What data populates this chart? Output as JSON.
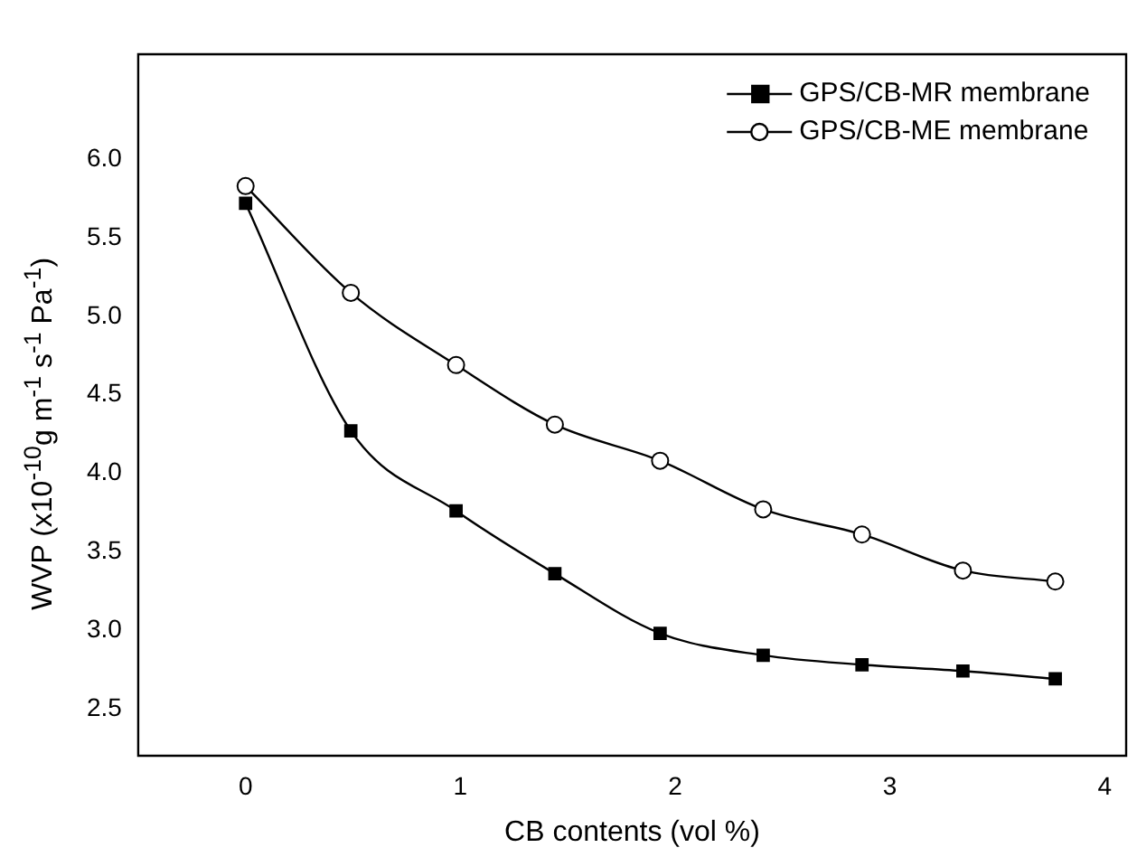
{
  "chart_data": {
    "type": "line",
    "xlabel": "CB contents (vol %)",
    "ylabel": "WVP (x10$^{-10}$g m$^{-1}$ s$^{-1}$ Pa$^{-1}$)",
    "xlim": [
      -0.5,
      4.1
    ],
    "xticks": [
      0,
      1,
      2,
      3,
      4
    ],
    "ylim": [
      2.2,
      6.67
    ],
    "yticks": [
      {
        "value": 2.5,
        "label": "2.5"
      },
      {
        "value": 3,
        "label": "3.0"
      },
      {
        "value": 3.5,
        "label": "3.5"
      },
      {
        "value": 4,
        "label": "4.0"
      },
      {
        "value": 4.5,
        "label": "4.5"
      },
      {
        "value": 5,
        "label": "5.0"
      },
      {
        "value": 5.5,
        "label": "5.5"
      },
      {
        "value": 6,
        "label": "6.0"
      }
    ],
    "grid": false,
    "legend": "top right",
    "series": [
      {
        "name": "GPS/CB-MR membrane",
        "color": "#000000",
        "marker": "square",
        "x": [
          0,
          0.49,
          0.98,
          1.44,
          1.93,
          2.41,
          2.87,
          3.34,
          3.77
        ],
        "values": [
          5.72,
          4.27,
          3.76,
          3.36,
          2.98,
          2.84,
          2.78,
          2.74,
          2.69
        ]
      },
      {
        "name": "GPS/CB-ME membrane",
        "color": "#000000",
        "marker": "circle",
        "x": [
          0,
          0.49,
          0.98,
          1.44,
          1.93,
          2.41,
          2.87,
          3.34,
          3.77
        ],
        "values": [
          5.83,
          5.15,
          4.69,
          4.31,
          4.08,
          3.77,
          3.61,
          3.38,
          3.31
        ]
      }
    ]
  }
}
